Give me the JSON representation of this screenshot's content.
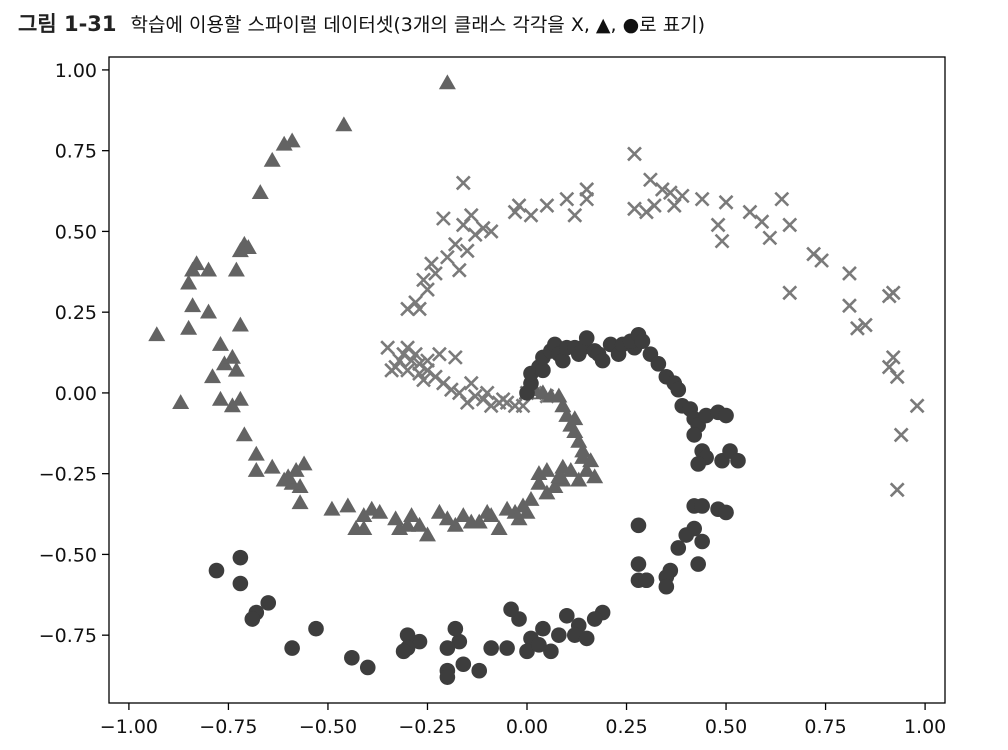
{
  "caption": {
    "figure_number": "그림 1-31",
    "title": "학습에 이용할 스파이럴 데이터셋(3개의 클래스 각각을 X, ▲, ●로 표기)"
  },
  "colors": {
    "cross": "#7a7a7a",
    "triangle": "#636363",
    "circle": "#3d3d3d",
    "frame": "#000000"
  },
  "chart_data": {
    "type": "scatter",
    "title": "",
    "xlabel": "",
    "ylabel": "",
    "xlim": [
      -1.05,
      1.05
    ],
    "ylim": [
      -0.96,
      1.04
    ],
    "x_ticks": [
      -1.0,
      -0.75,
      -0.5,
      -0.25,
      0.0,
      0.25,
      0.5,
      0.75,
      1.0
    ],
    "x_tick_labels": [
      "−1.00",
      "−0.75",
      "−0.50",
      "−0.25",
      "0.00",
      "0.25",
      "0.50",
      "0.75",
      "1.00"
    ],
    "y_ticks": [
      1.0,
      0.75,
      0.5,
      0.25,
      0.0,
      -0.25,
      -0.5,
      -0.75
    ],
    "y_tick_labels": [
      "1.00",
      "0.75",
      "0.50",
      "0.25",
      "0.00",
      "−0.25",
      "−0.50",
      "−0.75"
    ],
    "grid": false,
    "legend": null,
    "series": [
      {
        "marker": "x",
        "points": [
          [
            0.0,
            0.0
          ],
          [
            -0.01,
            -0.04
          ],
          [
            -0.03,
            -0.04
          ],
          [
            -0.05,
            -0.03
          ],
          [
            -0.07,
            -0.03
          ],
          [
            -0.09,
            -0.04
          ],
          [
            -0.11,
            -0.02
          ],
          [
            -0.13,
            -0.01
          ],
          [
            -0.15,
            -0.03
          ],
          [
            -0.17,
            0.0
          ],
          [
            -0.19,
            0.01
          ],
          [
            -0.21,
            0.03
          ],
          [
            -0.23,
            0.05
          ],
          [
            -0.25,
            0.07
          ],
          [
            -0.27,
            0.09
          ],
          [
            -0.29,
            0.1
          ],
          [
            -0.31,
            0.12
          ],
          [
            -0.33,
            0.08
          ],
          [
            -0.3,
            0.14
          ],
          [
            -0.28,
            0.12
          ],
          [
            -0.25,
            0.1
          ],
          [
            -0.22,
            0.12
          ],
          [
            -0.18,
            0.11
          ],
          [
            -0.14,
            0.03
          ],
          [
            -0.1,
            0.0
          ],
          [
            -0.06,
            -0.02
          ],
          [
            0.02,
            0.0
          ],
          [
            0.05,
            -0.01
          ],
          [
            -0.34,
            0.07
          ],
          [
            -0.26,
            0.04
          ],
          [
            -0.3,
            0.26
          ],
          [
            -0.28,
            0.28
          ],
          [
            -0.27,
            0.26
          ],
          [
            -0.26,
            0.35
          ],
          [
            -0.24,
            0.4
          ],
          [
            -0.25,
            0.32
          ],
          [
            -0.23,
            0.37
          ],
          [
            -0.2,
            0.42
          ],
          [
            -0.18,
            0.46
          ],
          [
            -0.17,
            0.38
          ],
          [
            -0.15,
            0.44
          ],
          [
            -0.13,
            0.49
          ],
          [
            -0.11,
            0.51
          ],
          [
            -0.09,
            0.5
          ],
          [
            -0.14,
            0.55
          ],
          [
            -0.16,
            0.52
          ],
          [
            -0.21,
            0.54
          ],
          [
            -0.16,
            0.65
          ],
          [
            -0.03,
            0.56
          ],
          [
            -0.02,
            0.58
          ],
          [
            0.01,
            0.55
          ],
          [
            0.05,
            0.58
          ],
          [
            0.1,
            0.6
          ],
          [
            0.12,
            0.55
          ],
          [
            0.15,
            0.6
          ],
          [
            0.15,
            0.63
          ],
          [
            0.27,
            0.57
          ],
          [
            0.27,
            0.74
          ],
          [
            0.3,
            0.56
          ],
          [
            0.32,
            0.58
          ],
          [
            0.31,
            0.66
          ],
          [
            0.34,
            0.63
          ],
          [
            0.36,
            0.62
          ],
          [
            0.37,
            0.58
          ],
          [
            0.39,
            0.61
          ],
          [
            0.44,
            0.6
          ],
          [
            0.48,
            0.52
          ],
          [
            0.49,
            0.47
          ],
          [
            0.5,
            0.59
          ],
          [
            0.56,
            0.56
          ],
          [
            0.59,
            0.53
          ],
          [
            0.61,
            0.48
          ],
          [
            0.64,
            0.6
          ],
          [
            0.66,
            0.52
          ],
          [
            0.66,
            0.31
          ],
          [
            0.72,
            0.43
          ],
          [
            0.74,
            0.41
          ],
          [
            0.81,
            0.37
          ],
          [
            0.81,
            0.27
          ],
          [
            0.83,
            0.2
          ],
          [
            0.85,
            0.21
          ],
          [
            0.91,
            0.3
          ],
          [
            0.91,
            0.08
          ],
          [
            0.92,
            0.31
          ],
          [
            0.92,
            0.11
          ],
          [
            0.93,
            0.05
          ],
          [
            0.93,
            -0.3
          ],
          [
            0.94,
            -0.13
          ],
          [
            0.98,
            -0.04
          ],
          [
            -0.35,
            0.14
          ],
          [
            -0.32,
            0.1
          ],
          [
            -0.3,
            0.07
          ],
          [
            -0.27,
            0.06
          ]
        ]
      },
      {
        "marker": "triangle",
        "points": [
          [
            0.0,
            0.0
          ],
          [
            0.02,
            0.01
          ],
          [
            0.04,
            0.0
          ],
          [
            0.06,
            -0.01
          ],
          [
            0.08,
            -0.01
          ],
          [
            0.09,
            -0.04
          ],
          [
            0.1,
            -0.07
          ],
          [
            0.11,
            -0.1
          ],
          [
            0.12,
            -0.12
          ],
          [
            0.13,
            -0.15
          ],
          [
            0.14,
            -0.18
          ],
          [
            0.14,
            -0.2
          ],
          [
            0.15,
            -0.24
          ],
          [
            0.16,
            -0.21
          ],
          [
            0.17,
            -0.26
          ],
          [
            0.13,
            -0.27
          ],
          [
            0.11,
            -0.24
          ],
          [
            0.09,
            -0.27
          ],
          [
            0.07,
            -0.29
          ],
          [
            0.05,
            -0.31
          ],
          [
            0.03,
            -0.28
          ],
          [
            0.01,
            -0.33
          ],
          [
            -0.01,
            -0.35
          ],
          [
            -0.02,
            -0.39
          ],
          [
            -0.03,
            -0.37
          ],
          [
            -0.05,
            -0.36
          ],
          [
            -0.07,
            -0.42
          ],
          [
            -0.09,
            -0.38
          ],
          [
            -0.1,
            -0.37
          ],
          [
            -0.12,
            -0.4
          ],
          [
            -0.14,
            -0.4
          ],
          [
            -0.16,
            -0.38
          ],
          [
            -0.18,
            -0.41
          ],
          [
            -0.2,
            -0.39
          ],
          [
            -0.22,
            -0.37
          ],
          [
            -0.25,
            -0.44
          ],
          [
            -0.27,
            -0.41
          ],
          [
            -0.3,
            -0.41
          ],
          [
            -0.32,
            -0.42
          ],
          [
            -0.33,
            -0.39
          ],
          [
            -0.37,
            -0.37
          ],
          [
            -0.39,
            -0.36
          ],
          [
            -0.41,
            -0.38
          ],
          [
            -0.43,
            -0.42
          ],
          [
            -0.45,
            -0.35
          ],
          [
            -0.49,
            -0.36
          ],
          [
            -0.57,
            -0.34
          ],
          [
            -0.57,
            -0.29
          ],
          [
            -0.59,
            -0.28
          ],
          [
            -0.6,
            -0.26
          ],
          [
            -0.61,
            -0.27
          ],
          [
            -0.58,
            -0.24
          ],
          [
            -0.56,
            -0.22
          ],
          [
            -0.64,
            -0.23
          ],
          [
            -0.68,
            -0.19
          ],
          [
            -0.68,
            -0.24
          ],
          [
            -0.71,
            -0.13
          ],
          [
            -0.72,
            -0.02
          ],
          [
            -0.77,
            -0.02
          ],
          [
            -0.79,
            0.05
          ],
          [
            -0.76,
            0.09
          ],
          [
            -0.74,
            0.11
          ],
          [
            -0.73,
            0.07
          ],
          [
            -0.72,
            0.21
          ],
          [
            -0.77,
            0.15
          ],
          [
            -0.8,
            0.25
          ],
          [
            -0.84,
            0.27
          ],
          [
            -0.85,
            0.2
          ],
          [
            -0.85,
            0.34
          ],
          [
            -0.87,
            -0.03
          ],
          [
            -0.93,
            0.18
          ],
          [
            -0.8,
            0.38
          ],
          [
            -0.84,
            0.38
          ],
          [
            -0.83,
            0.4
          ],
          [
            -0.73,
            0.38
          ],
          [
            -0.72,
            0.44
          ],
          [
            -0.71,
            0.46
          ],
          [
            -0.7,
            0.45
          ],
          [
            -0.67,
            0.62
          ],
          [
            -0.64,
            0.72
          ],
          [
            -0.61,
            0.77
          ],
          [
            -0.59,
            0.78
          ],
          [
            -0.46,
            0.83
          ],
          [
            -0.2,
            0.96
          ],
          [
            -0.74,
            -0.04
          ],
          [
            0.12,
            -0.08
          ],
          [
            0.09,
            -0.23
          ],
          [
            0.05,
            -0.24
          ],
          [
            0.03,
            -0.25
          ],
          [
            0.08,
            -0.26
          ],
          [
            -0.41,
            -0.42
          ],
          [
            -0.29,
            -0.38
          ],
          [
            0.0,
            -0.37
          ]
        ]
      },
      {
        "marker": "circle",
        "points": [
          [
            0.0,
            0.0
          ],
          [
            0.01,
            0.03
          ],
          [
            0.01,
            0.06
          ],
          [
            0.03,
            0.08
          ],
          [
            0.04,
            0.07
          ],
          [
            0.04,
            0.11
          ],
          [
            0.06,
            0.13
          ],
          [
            0.07,
            0.15
          ],
          [
            0.08,
            0.12
          ],
          [
            0.09,
            0.1
          ],
          [
            0.1,
            0.14
          ],
          [
            0.12,
            0.14
          ],
          [
            0.13,
            0.12
          ],
          [
            0.14,
            0.14
          ],
          [
            0.15,
            0.17
          ],
          [
            0.17,
            0.13
          ],
          [
            0.18,
            0.12
          ],
          [
            0.19,
            0.1
          ],
          [
            0.21,
            0.15
          ],
          [
            0.23,
            0.12
          ],
          [
            0.24,
            0.15
          ],
          [
            0.27,
            0.14
          ],
          [
            0.26,
            0.16
          ],
          [
            0.28,
            0.18
          ],
          [
            0.29,
            0.16
          ],
          [
            0.31,
            0.12
          ],
          [
            0.33,
            0.09
          ],
          [
            0.35,
            0.05
          ],
          [
            0.37,
            0.03
          ],
          [
            0.38,
            0.01
          ],
          [
            0.39,
            -0.04
          ],
          [
            0.41,
            -0.05
          ],
          [
            0.42,
            -0.08
          ],
          [
            0.43,
            -0.1
          ],
          [
            0.42,
            -0.13
          ],
          [
            0.45,
            -0.07
          ],
          [
            0.48,
            -0.06
          ],
          [
            0.5,
            -0.07
          ],
          [
            0.44,
            -0.18
          ],
          [
            0.45,
            -0.2
          ],
          [
            0.43,
            -0.22
          ],
          [
            0.49,
            -0.21
          ],
          [
            0.51,
            -0.18
          ],
          [
            0.53,
            -0.21
          ],
          [
            0.42,
            -0.35
          ],
          [
            0.44,
            -0.35
          ],
          [
            0.48,
            -0.36
          ],
          [
            0.5,
            -0.37
          ],
          [
            0.42,
            -0.42
          ],
          [
            0.4,
            -0.44
          ],
          [
            0.38,
            -0.48
          ],
          [
            0.44,
            -0.46
          ],
          [
            0.43,
            -0.53
          ],
          [
            0.36,
            -0.55
          ],
          [
            0.35,
            -0.57
          ],
          [
            0.3,
            -0.58
          ],
          [
            0.28,
            -0.58
          ],
          [
            0.28,
            -0.53
          ],
          [
            0.28,
            -0.41
          ],
          [
            0.35,
            -0.6
          ],
          [
            0.19,
            -0.68
          ],
          [
            0.17,
            -0.7
          ],
          [
            0.13,
            -0.72
          ],
          [
            0.12,
            -0.75
          ],
          [
            0.15,
            -0.76
          ],
          [
            0.08,
            -0.75
          ],
          [
            0.04,
            -0.73
          ],
          [
            0.01,
            -0.76
          ],
          [
            0.0,
            -0.8
          ],
          [
            -0.02,
            -0.7
          ],
          [
            -0.04,
            -0.67
          ],
          [
            -0.05,
            -0.79
          ],
          [
            -0.09,
            -0.79
          ],
          [
            -0.12,
            -0.86
          ],
          [
            -0.16,
            -0.84
          ],
          [
            -0.17,
            -0.77
          ],
          [
            -0.18,
            -0.73
          ],
          [
            -0.2,
            -0.79
          ],
          [
            -0.2,
            -0.86
          ],
          [
            -0.2,
            -0.88
          ],
          [
            -0.27,
            -0.77
          ],
          [
            -0.3,
            -0.75
          ],
          [
            -0.3,
            -0.79
          ],
          [
            -0.31,
            -0.8
          ],
          [
            -0.4,
            -0.85
          ],
          [
            -0.44,
            -0.82
          ],
          [
            -0.53,
            -0.73
          ],
          [
            -0.59,
            -0.79
          ],
          [
            -0.65,
            -0.65
          ],
          [
            -0.68,
            -0.68
          ],
          [
            -0.69,
            -0.7
          ],
          [
            -0.72,
            -0.59
          ],
          [
            -0.72,
            -0.51
          ],
          [
            -0.78,
            -0.55
          ],
          [
            0.06,
            -0.8
          ],
          [
            0.1,
            -0.69
          ],
          [
            0.03,
            -0.78
          ],
          [
            0.3,
            -0.58
          ]
        ]
      }
    ]
  }
}
